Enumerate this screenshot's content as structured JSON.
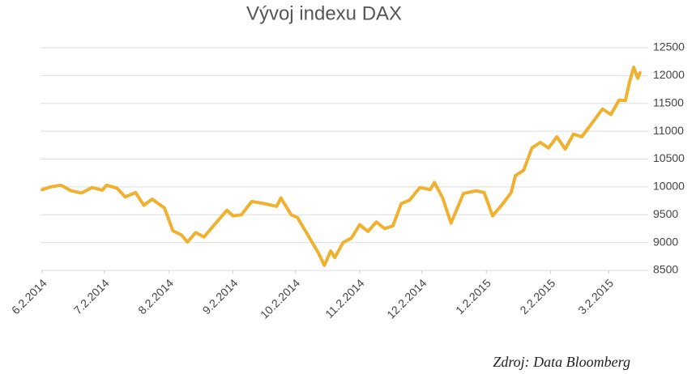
{
  "chart_data": {
    "type": "line",
    "title": "Vývoj indexu DAX",
    "source": "Zdroj: Data Bloomberg",
    "x": [
      "2014-06-02",
      "2014-06-06",
      "2014-06-11",
      "2014-06-16",
      "2014-06-21",
      "2014-06-26",
      "2014-07-01",
      "2014-07-03",
      "2014-07-08",
      "2014-07-12",
      "2014-07-17",
      "2014-07-21",
      "2014-07-25",
      "2014-07-31",
      "2014-08-04",
      "2014-08-08",
      "2014-08-11",
      "2014-08-15",
      "2014-08-19",
      "2014-08-24",
      "2014-08-30",
      "2014-09-02",
      "2014-09-06",
      "2014-09-11",
      "2014-09-17",
      "2014-09-23",
      "2014-09-25",
      "2014-09-30",
      "2014-10-03",
      "2014-10-07",
      "2014-10-13",
      "2014-10-16",
      "2014-10-19",
      "2014-10-21",
      "2014-10-25",
      "2014-10-29",
      "2014-11-02",
      "2014-11-06",
      "2014-11-10",
      "2014-11-14",
      "2014-11-18",
      "2014-11-22",
      "2014-11-26",
      "2014-12-01",
      "2014-12-06",
      "2014-12-08",
      "2014-12-12",
      "2014-12-16",
      "2014-12-22",
      "2014-12-28",
      "2015-01-01",
      "2015-01-05",
      "2015-01-10",
      "2015-01-14",
      "2015-01-16",
      "2015-01-20",
      "2015-01-24",
      "2015-01-28",
      "2015-02-01",
      "2015-02-05",
      "2015-02-09",
      "2015-02-13",
      "2015-02-17",
      "2015-02-23",
      "2015-02-27",
      "2015-03-03",
      "2015-03-07",
      "2015-03-10",
      "2015-03-12",
      "2015-03-14",
      "2015-03-16",
      "2015-03-17"
    ],
    "series": [
      {
        "name": "DAX",
        "color": "#f0b030",
        "values": [
          9950,
          10000,
          10030,
          9930,
          9890,
          9990,
          9940,
          10030,
          9980,
          9820,
          9900,
          9670,
          9780,
          9620,
          9210,
          9140,
          9010,
          9180,
          9100,
          9320,
          9580,
          9480,
          9500,
          9740,
          9700,
          9650,
          9800,
          9500,
          9450,
          9200,
          8820,
          8590,
          8850,
          8730,
          9000,
          9080,
          9320,
          9200,
          9370,
          9250,
          9300,
          9700,
          9760,
          9990,
          9950,
          10080,
          9800,
          9350,
          9880,
          9930,
          9900,
          9480,
          9700,
          9900,
          10200,
          10300,
          10700,
          10800,
          10700,
          10900,
          10680,
          10950,
          10900,
          11200,
          11400,
          11300,
          11560,
          11550,
          11880,
          12150,
          11950,
          12050
        ]
      }
    ],
    "xlim": [
      "2014-06-02",
      "2015-03-21"
    ],
    "xticks": [
      {
        "value": "2014-06-02",
        "label": "6.2.2014"
      },
      {
        "value": "2014-07-02",
        "label": "7.2.2014"
      },
      {
        "value": "2014-08-02",
        "label": "8.2.2014"
      },
      {
        "value": "2014-09-02",
        "label": "9.2.2014"
      },
      {
        "value": "2014-10-02",
        "label": "10.2.2014"
      },
      {
        "value": "2014-11-02",
        "label": "11.2.2014"
      },
      {
        "value": "2014-12-02",
        "label": "12.2.2014"
      },
      {
        "value": "2015-01-02",
        "label": "1.2.2015"
      },
      {
        "value": "2015-02-02",
        "label": "2.2.2015"
      },
      {
        "value": "2015-03-02",
        "label": "3.2.2015"
      }
    ],
    "ylim": [
      8500,
      12500
    ],
    "yticks": [
      8500,
      9000,
      9500,
      10000,
      10500,
      11000,
      11500,
      12000,
      12500
    ],
    "grid": true
  }
}
